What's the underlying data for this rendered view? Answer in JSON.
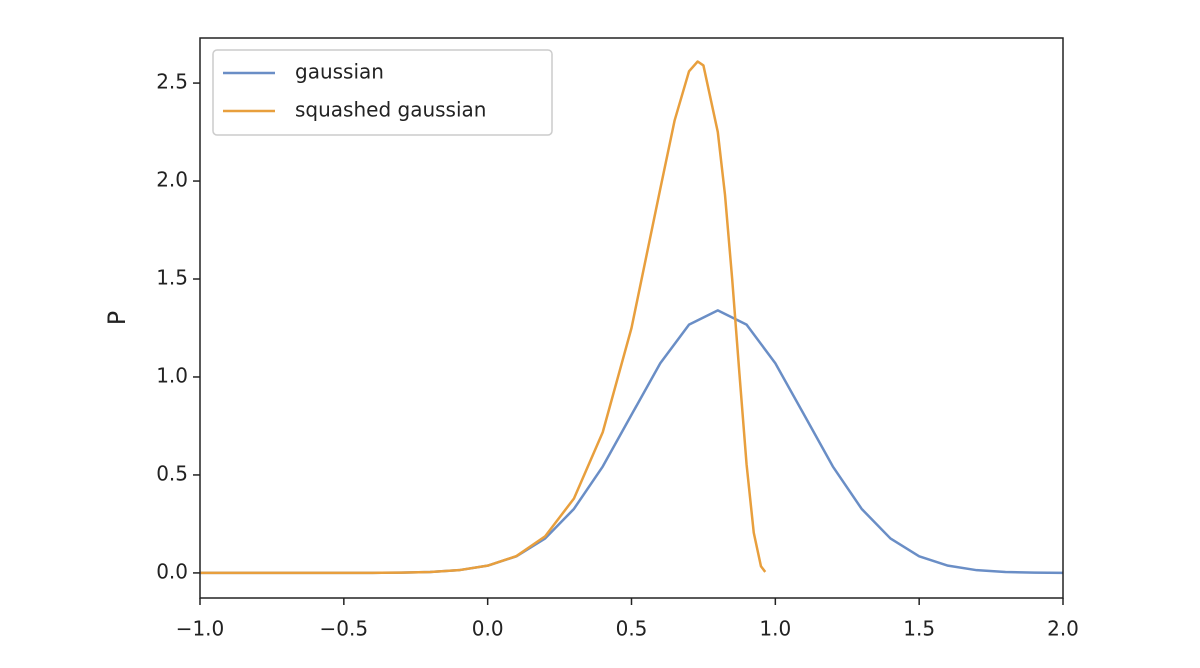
{
  "chart_data": {
    "type": "line",
    "ylabel": "P",
    "xlim": [
      -1.0,
      2.0
    ],
    "ylim": [
      -0.128,
      2.73
    ],
    "xticks": [
      {
        "value": -1.0,
        "label": "−1.0"
      },
      {
        "value": -0.5,
        "label": "−0.5"
      },
      {
        "value": 0,
        "label": "0.0"
      },
      {
        "value": 0.5,
        "label": "0.5"
      },
      {
        "value": 1.0,
        "label": "1.0"
      },
      {
        "value": 1.5,
        "label": "1.5"
      },
      {
        "value": 2.0,
        "label": "2.0"
      }
    ],
    "yticks": [
      {
        "value": 0,
        "label": "0.0"
      },
      {
        "value": 0.5,
        "label": "0.5"
      },
      {
        "value": 1.0,
        "label": "1.0"
      },
      {
        "value": 1.5,
        "label": "1.5"
      },
      {
        "value": 2.0,
        "label": "2.0"
      },
      {
        "value": 2.5,
        "label": "2.5"
      }
    ],
    "legend": "upper left",
    "series": [
      {
        "name": "gaussian",
        "color": "#6a8ec6",
        "x": [
          -1.0,
          -0.5,
          -0.4,
          -0.3,
          -0.2,
          -0.1,
          0.0,
          0.1,
          0.2,
          0.3,
          0.4,
          0.5,
          0.6,
          0.7,
          0.8,
          0.9,
          1.0,
          1.1,
          1.2,
          1.3,
          1.4,
          1.5,
          1.6,
          1.7,
          1.8,
          1.9,
          2.0
        ],
        "values": [
          0,
          0.0001,
          0.0004,
          0.0015,
          0.0048,
          0.014,
          0.037,
          0.085,
          0.176,
          0.327,
          0.543,
          0.807,
          1.07,
          1.267,
          1.34,
          1.267,
          1.07,
          0.807,
          0.543,
          0.327,
          0.176,
          0.085,
          0.037,
          0.014,
          0.0048,
          0.0015,
          0.0004
        ]
      },
      {
        "name": "squashed gaussian",
        "color": "#e89f3d",
        "x": [
          -1.0,
          -0.5,
          -0.4,
          -0.3,
          -0.2,
          -0.1,
          0.0,
          0.1,
          0.2,
          0.3,
          0.4,
          0.5,
          0.6,
          0.65,
          0.7,
          0.73,
          0.75,
          0.8,
          0.825,
          0.85,
          0.875,
          0.9,
          0.925,
          0.95,
          0.965
        ],
        "values": [
          0,
          0.0001,
          0.0004,
          0.0015,
          0.0048,
          0.014,
          0.037,
          0.086,
          0.187,
          0.38,
          0.718,
          1.25,
          1.96,
          2.31,
          2.56,
          2.61,
          2.59,
          2.25,
          1.93,
          1.5,
          1.02,
          0.554,
          0.205,
          0.034,
          0.005
        ]
      }
    ]
  }
}
